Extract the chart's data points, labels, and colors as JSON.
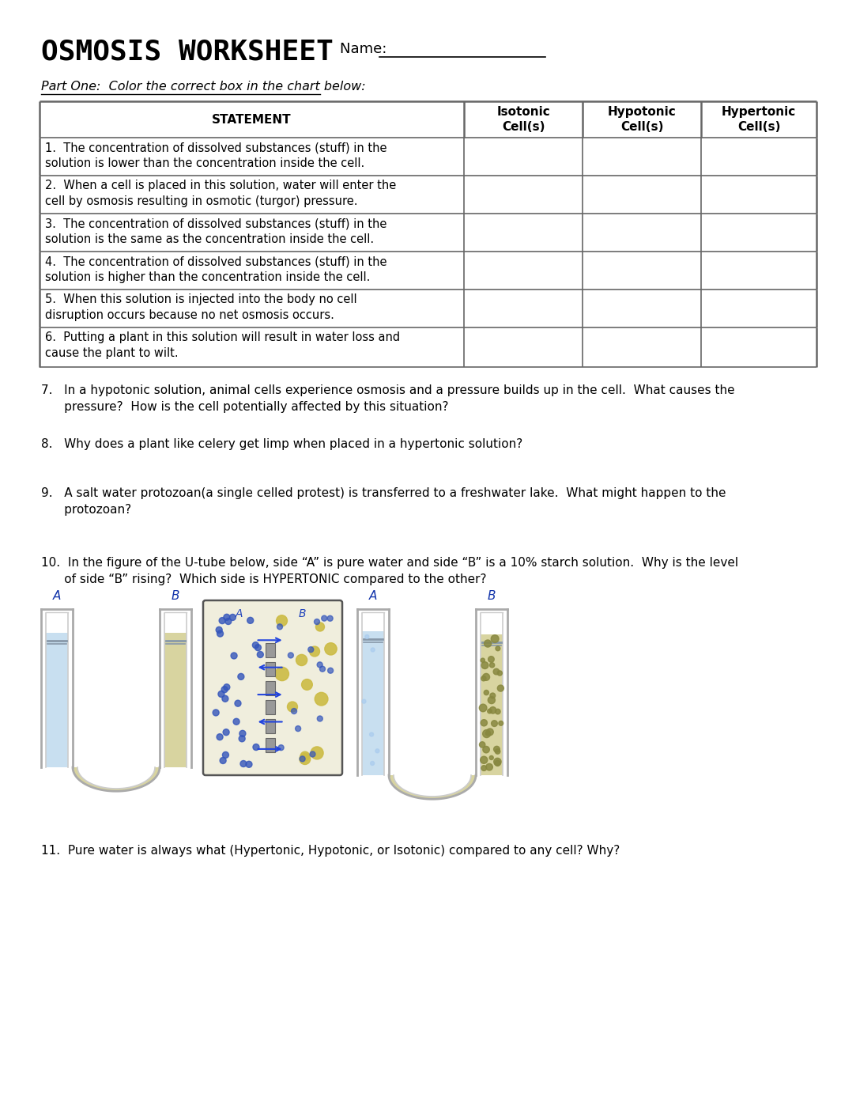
{
  "title": "OSMOSIS WORKSHEET",
  "name_label": "Name:  ___________________________",
  "part_one_label": "Part One:  Color the correct box in the chart below:",
  "table_headers": [
    "STATEMENT",
    "Isotonic\nCell(s)",
    "Hypotonic\nCell(s)",
    "Hypertonic\nCell(s)"
  ],
  "table_rows": [
    "1.  The concentration of dissolved substances (stuff) in the\nsolution is lower than the concentration inside the cell.",
    "2.  When a cell is placed in this solution, water will enter the\ncell by osmosis resulting in osmotic (turgor) pressure.",
    "3.  The concentration of dissolved substances (stuff) in the\nsolution is the same as the concentration inside the cell.",
    "4.  The concentration of dissolved substances (stuff) in the\nsolution is higher than the concentration inside the cell.",
    "5.  When this solution is injected into the body no cell\ndisruption occurs because no net osmosis occurs.",
    "6.  Putting a plant in this solution will result in water loss and\ncause the plant to wilt."
  ],
  "q7": "7.   In a hypotonic solution, animal cells experience osmosis and a pressure builds up in the cell.  What causes the\n      pressure?  How is the cell potentially affected by this situation?",
  "q8": "8.   Why does a plant like celery get limp when placed in a hypertonic solution?",
  "q9": "9.   A salt water protozoan(a single celled protest) is transferred to a freshwater lake.  What might happen to the\n      protozoan?",
  "q10": "10.  In the figure of the U-tube below, side “A” is pure water and side “B” is a 10% starch solution.  Why is the level\n      of side “B” rising?  Which side is HYPERTONIC compared to the other?",
  "q11": "11.  Pure water is always what (Hypertonic, Hypotonic, or Isotonic) compared to any cell? Why?",
  "bg_color": "#ffffff",
  "text_color": "#000000",
  "table_border_color": "#666666",
  "title_fontsize": 26,
  "body_fontsize": 11,
  "table_fontsize": 10.5
}
